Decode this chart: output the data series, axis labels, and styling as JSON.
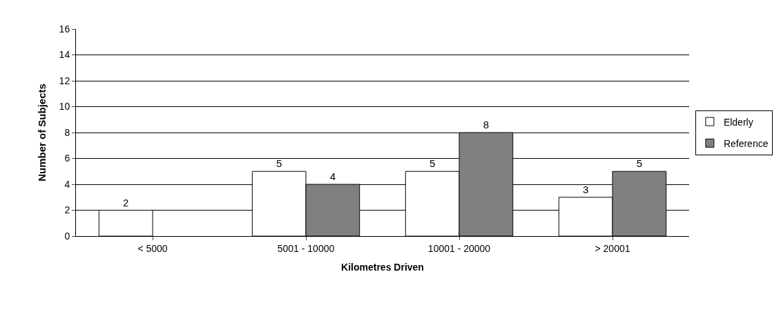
{
  "chart_data": {
    "type": "bar",
    "xlabel": "Kilometres Driven",
    "ylabel": "Number of Subjects",
    "categories": [
      "< 5000",
      "5001 - 10000",
      "10001 - 20000",
      "> 20001"
    ],
    "series": [
      {
        "name": "Elderly",
        "color": "#ffffff",
        "values": [
          2,
          5,
          5,
          3
        ],
        "value_labels": [
          "2",
          "5",
          "5",
          "3"
        ]
      },
      {
        "name": "Reference",
        "color": "#808080",
        "values": [
          null,
          4,
          8,
          5
        ],
        "value_labels": [
          null,
          "4",
          "8",
          "5"
        ]
      }
    ],
    "ylim": [
      0,
      16
    ],
    "yticks": [
      0,
      2,
      4,
      6,
      8,
      10,
      12,
      14,
      16
    ],
    "grid": "y",
    "legend": "right"
  }
}
